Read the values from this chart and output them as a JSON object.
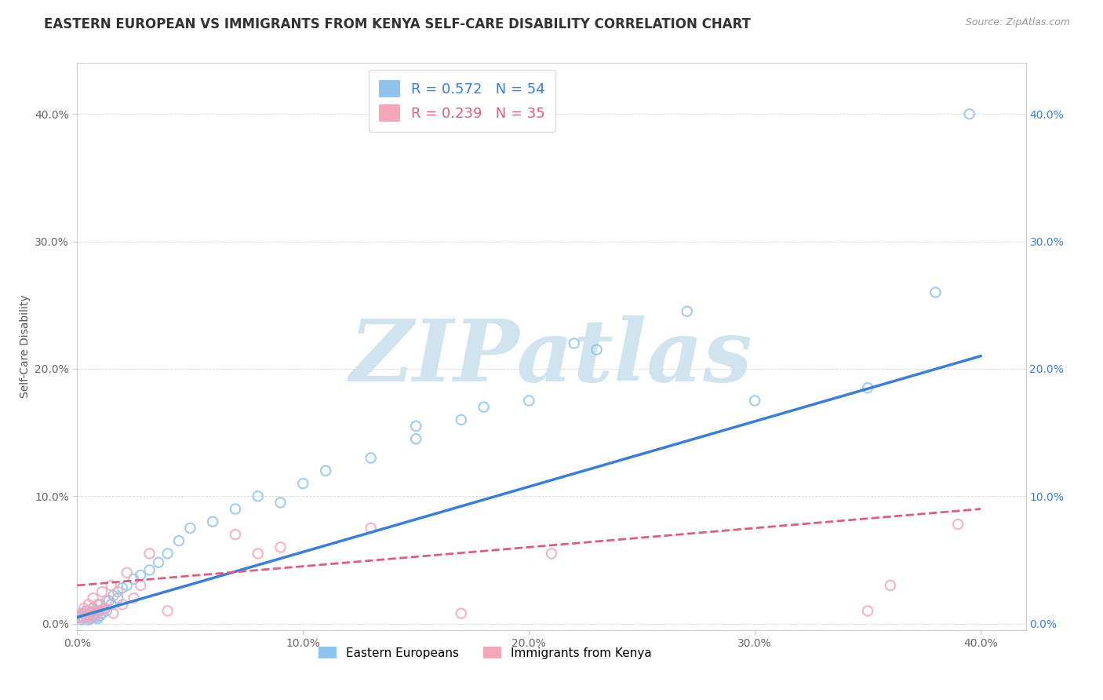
{
  "title": "EASTERN EUROPEAN VS IMMIGRANTS FROM KENYA SELF-CARE DISABILITY CORRELATION CHART",
  "source": "Source: ZipAtlas.com",
  "xlabel": "",
  "ylabel": "Self-Care Disability",
  "xlim": [
    0.0,
    0.42
  ],
  "ylim": [
    -0.005,
    0.44
  ],
  "x_ticks": [
    0.0,
    0.1,
    0.2,
    0.3,
    0.4
  ],
  "x_tick_labels": [
    "0.0%",
    "10.0%",
    "20.0%",
    "30.0%",
    "40.0%"
  ],
  "y_ticks": [
    0.0,
    0.1,
    0.2,
    0.3,
    0.4
  ],
  "y_tick_labels": [
    "0.0%",
    "10.0%",
    "20.0%",
    "30.0%",
    "40.0%"
  ],
  "series1_color": "#91c4ec",
  "series2_color": "#f4a7b9",
  "line1_color": "#3a7fd5",
  "line2_color": "#d9607a",
  "R1": 0.572,
  "N1": 54,
  "R2": 0.239,
  "N2": 35,
  "legend1": "Eastern Europeans",
  "legend2": "Immigrants from Kenya",
  "watermark": "ZIPatlas",
  "watermark_color": "#d0e4f0",
  "background_color": "#ffffff",
  "title_fontsize": 12,
  "axis_label_fontsize": 10,
  "tick_fontsize": 10,
  "line1_x0": 0.0,
  "line1_y0": 0.005,
  "line1_x1": 0.4,
  "line1_y1": 0.21,
  "line2_x0": 0.0,
  "line2_y0": 0.03,
  "line2_x1": 0.4,
  "line2_y1": 0.09,
  "series1_x": [
    0.001,
    0.002,
    0.002,
    0.003,
    0.003,
    0.004,
    0.004,
    0.005,
    0.005,
    0.006,
    0.006,
    0.007,
    0.007,
    0.008,
    0.008,
    0.009,
    0.009,
    0.01,
    0.01,
    0.011,
    0.012,
    0.013,
    0.014,
    0.015,
    0.016,
    0.018,
    0.02,
    0.022,
    0.025,
    0.028,
    0.032,
    0.036,
    0.04,
    0.045,
    0.05,
    0.06,
    0.07,
    0.08,
    0.09,
    0.1,
    0.11,
    0.13,
    0.15,
    0.17,
    0.2,
    0.23,
    0.15,
    0.18,
    0.22,
    0.27,
    0.3,
    0.35,
    0.38,
    0.395
  ],
  "series1_y": [
    0.005,
    0.003,
    0.006,
    0.004,
    0.008,
    0.005,
    0.01,
    0.003,
    0.007,
    0.004,
    0.009,
    0.006,
    0.012,
    0.005,
    0.008,
    0.004,
    0.01,
    0.006,
    0.015,
    0.008,
    0.012,
    0.01,
    0.018,
    0.015,
    0.022,
    0.02,
    0.028,
    0.03,
    0.035,
    0.038,
    0.042,
    0.048,
    0.055,
    0.065,
    0.075,
    0.08,
    0.09,
    0.1,
    0.095,
    0.11,
    0.12,
    0.13,
    0.145,
    0.16,
    0.175,
    0.215,
    0.155,
    0.17,
    0.22,
    0.245,
    0.175,
    0.185,
    0.26,
    0.4
  ],
  "series2_x": [
    0.001,
    0.002,
    0.003,
    0.003,
    0.004,
    0.005,
    0.005,
    0.006,
    0.006,
    0.007,
    0.007,
    0.008,
    0.009,
    0.01,
    0.011,
    0.012,
    0.013,
    0.015,
    0.016,
    0.018,
    0.02,
    0.022,
    0.025,
    0.028,
    0.032,
    0.04,
    0.07,
    0.08,
    0.09,
    0.13,
    0.17,
    0.21,
    0.35,
    0.36,
    0.39
  ],
  "series2_y": [
    0.005,
    0.008,
    0.004,
    0.012,
    0.006,
    0.01,
    0.015,
    0.005,
    0.008,
    0.012,
    0.02,
    0.007,
    0.015,
    0.01,
    0.025,
    0.012,
    0.018,
    0.03,
    0.008,
    0.025,
    0.015,
    0.04,
    0.02,
    0.03,
    0.055,
    0.01,
    0.07,
    0.055,
    0.06,
    0.075,
    0.008,
    0.055,
    0.01,
    0.03,
    0.078
  ]
}
